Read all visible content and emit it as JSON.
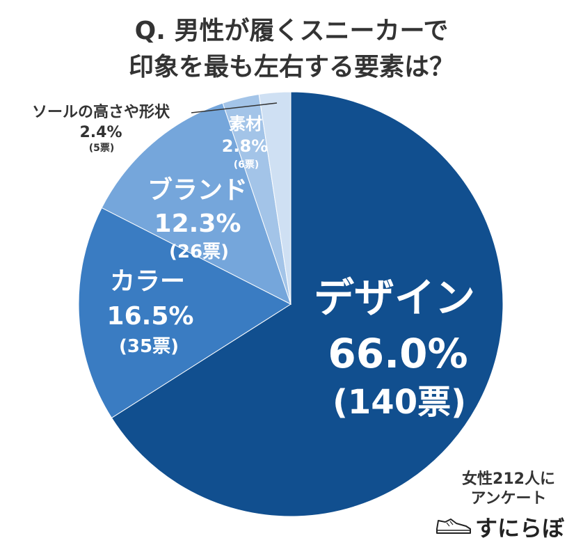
{
  "chart_data": {
    "type": "pie",
    "title_lines": [
      "Q. 男性が履くスニーカーで",
      "印象を最も左右する要素は？"
    ],
    "slices": [
      {
        "name": "デザイン",
        "percent_label": "66.0%",
        "votes_label": "(140票)",
        "value": 66.0,
        "color": "#114f8f"
      },
      {
        "name": "カラー",
        "percent_label": "16.5%",
        "votes_label": "(35票)",
        "value": 16.5,
        "color": "#3a7cc2"
      },
      {
        "name": "ブランド",
        "percent_label": "12.3%",
        "votes_label": "(26票)",
        "value": 12.3,
        "color": "#75a6db"
      },
      {
        "name": "素材",
        "percent_label": "2.8%",
        "votes_label": "(6票)",
        "value": 2.8,
        "color": "#a3c4e8"
      },
      {
        "name": "ソールの高さや形状",
        "percent_label": "2.4%",
        "votes_label": "(5票)",
        "value": 2.4,
        "color": "#cfe0f3"
      }
    ],
    "start": "12 o'clock, clockwise"
  },
  "note_lines": [
    "女性212人に",
    "アンケート"
  ],
  "brand": {
    "name": "すにらぼ",
    "icon": "sneaker-icon"
  }
}
